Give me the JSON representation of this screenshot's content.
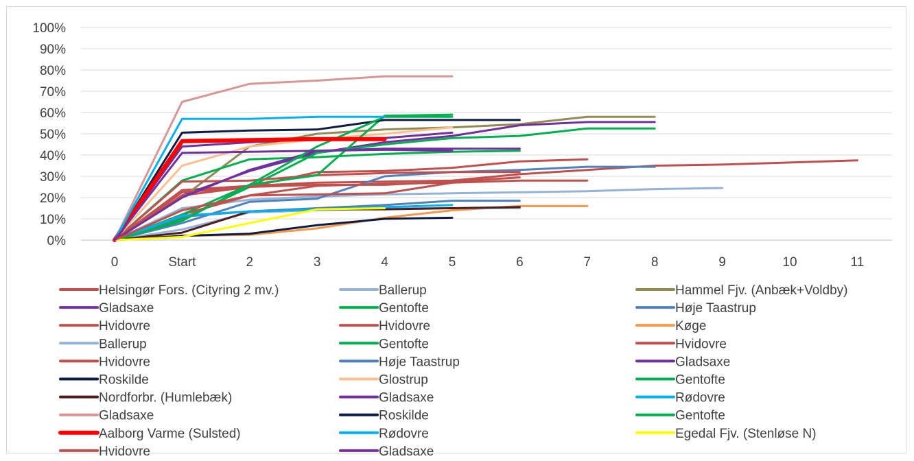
{
  "chart_data": {
    "type": "line",
    "x_categories": [
      "0",
      "Start",
      "2",
      "3",
      "4",
      "5",
      "6",
      "7",
      "8",
      "9",
      "10",
      "11"
    ],
    "y_ticks": [
      "0%",
      "10%",
      "20%",
      "30%",
      "40%",
      "50%",
      "60%",
      "70%",
      "80%",
      "90%",
      "100%"
    ],
    "ylim": [
      0,
      100
    ],
    "grid": true,
    "legend_position": "bottom",
    "series": [
      {
        "name": "Helsingør Fors. (Cityring 2 mv.)",
        "color": "#c0504d",
        "width": 3,
        "values": [
          0,
          23.5,
          25.5,
          27,
          27.5,
          28,
          31,
          33,
          35,
          35.5,
          36.5,
          37.5
        ]
      },
      {
        "name": "Ballerup",
        "color": "#95b3d7",
        "width": 3,
        "values": [
          0,
          15,
          19,
          20.5,
          21.5,
          22,
          22.5,
          23,
          24,
          24.5
        ]
      },
      {
        "name": "Hammel Fjv. (Anbæk+Voldby)",
        "color": "#948a54",
        "width": 3,
        "values": [
          0,
          20,
          44,
          50,
          52,
          53,
          54.5,
          58,
          58
        ]
      },
      {
        "name": "Gladsaxe",
        "color": "#7030a0",
        "width": 3,
        "values": [
          0,
          21,
          32.5,
          41,
          46,
          49,
          54,
          55.5,
          55.5
        ]
      },
      {
        "name": "Gentofte",
        "color": "#00b050",
        "width": 3,
        "values": [
          0,
          10,
          25,
          41,
          45,
          48,
          49,
          52.5,
          52.5
        ]
      },
      {
        "name": "Høje Taastrup",
        "color": "#4f81bd",
        "width": 3,
        "values": [
          0,
          8,
          18,
          19.5,
          30,
          32,
          33,
          34.5,
          34.5
        ]
      },
      {
        "name": "Hvidovre",
        "color": "#c0504d",
        "width": 3,
        "values": [
          0,
          21,
          25,
          32,
          32.5,
          34,
          37,
          38
        ]
      },
      {
        "name": "Hvidovre",
        "color": "#c0504d",
        "width": 3,
        "values": [
          0,
          12,
          21,
          21.5,
          22,
          27,
          28,
          28
        ]
      },
      {
        "name": "Køge",
        "color": "#f79646",
        "width": 3,
        "values": [
          0,
          2,
          2.5,
          5.5,
          10.5,
          14,
          16,
          16
        ]
      },
      {
        "name": "Ballerup",
        "color": "#95b3d7",
        "width": 3,
        "values": [
          0,
          5,
          13,
          14,
          15,
          15,
          15
        ]
      },
      {
        "name": "Gentofte",
        "color": "#00b050",
        "width": 3,
        "values": [
          0,
          28,
          38,
          39,
          40.5,
          41.5,
          42
        ]
      },
      {
        "name": "Hvidovre",
        "color": "#c0504d",
        "width": 3,
        "values": [
          0,
          22.5,
          25,
          26,
          26,
          27.5,
          29.5
        ]
      },
      {
        "name": "Hvidovre",
        "color": "#c0504d",
        "width": 3,
        "values": [
          0,
          27.5,
          28,
          30.5,
          31.5,
          32,
          32
        ]
      },
      {
        "name": "Høje Taastrup",
        "color": "#4f81bd",
        "width": 3,
        "values": [
          0,
          11,
          13.5,
          15,
          16.5,
          18.5,
          18.5
        ]
      },
      {
        "name": "Gladsaxe",
        "color": "#7030a0",
        "width": 3,
        "values": [
          0,
          20,
          33,
          42,
          43,
          43,
          43
        ]
      },
      {
        "name": "Roskilde",
        "color": "#0c1c45",
        "width": 3,
        "values": [
          0,
          2,
          3,
          7,
          10,
          10.5
        ]
      },
      {
        "name": "Glostrup",
        "color": "#fac090",
        "width": 3,
        "values": [
          0,
          35,
          44,
          47.5,
          50,
          53
        ]
      },
      {
        "name": "Gentofte",
        "color": "#00b050",
        "width": 3,
        "values": [
          0,
          12,
          26,
          30.5,
          58.5,
          59
        ]
      },
      {
        "name": "Nordforbr. (Humlebæk)",
        "color": "#4d1c1c",
        "width": 3,
        "values": [
          0,
          3.5,
          13.5,
          14.5,
          14.5,
          15,
          15.5
        ]
      },
      {
        "name": "Gladsaxe",
        "color": "#7030a0",
        "width": 3,
        "values": [
          0,
          44,
          46,
          47.5,
          48,
          50.5
        ]
      },
      {
        "name": "Rødovre",
        "color": "#00b0f0",
        "width": 3,
        "values": [
          0,
          11.5,
          13.5,
          14.5,
          15.5,
          16.5
        ]
      },
      {
        "name": "Gladsaxe",
        "color": "#d99694",
        "width": 3,
        "values": [
          0,
          65,
          73.5,
          75,
          77,
          77
        ]
      },
      {
        "name": "Roskilde",
        "color": "#0c1c45",
        "width": 3,
        "values": [
          0,
          50.5,
          51.5,
          52,
          56.5,
          56.5,
          56.5
        ]
      },
      {
        "name": "Gentofte",
        "color": "#00b050",
        "width": 3,
        "values": [
          0,
          9,
          26,
          44,
          58,
          58
        ]
      },
      {
        "name": "Aalborg Varme (Sulsted)",
        "color": "#ff0000",
        "width": 6,
        "values": [
          0,
          46.5,
          47,
          47.5,
          47.5
        ]
      },
      {
        "name": "Rødovre",
        "color": "#00b0f0",
        "width": 3,
        "values": [
          0,
          57,
          57,
          58,
          58
        ]
      },
      {
        "name": "Egedal Fjv. (Stenløse N)",
        "color": "#ffff00",
        "width": 3,
        "values": [
          0,
          1.5,
          8,
          14.5,
          15
        ]
      },
      {
        "name": "Hvidovre",
        "color": "#c0504d",
        "width": 3,
        "values": [
          0,
          14,
          21,
          25.5,
          26.5,
          27
        ]
      },
      {
        "name": "Gladsaxe",
        "color": "#7030a0",
        "width": 3,
        "values": [
          0,
          41,
          41.5,
          42,
          42.5,
          42
        ]
      }
    ]
  }
}
